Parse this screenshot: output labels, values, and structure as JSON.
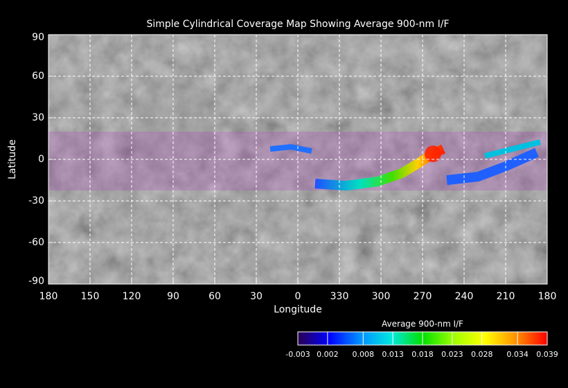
{
  "chart_data": {
    "type": "map",
    "title": "Simple Cylindrical Coverage Map Showing Average 900-nm I/F",
    "x_label": "Longitude",
    "y_label": "Latitude",
    "xlim": [
      180,
      -180
    ],
    "xticks": [
      180,
      150,
      120,
      90,
      60,
      30,
      0,
      {
        "value": -30,
        "label": "330"
      },
      {
        "value": -60,
        "label": "300"
      },
      {
        "value": -90,
        "label": "270"
      },
      {
        "value": -120,
        "label": "240"
      },
      {
        "value": -150,
        "label": "210"
      },
      {
        "value": -180,
        "label": "180"
      }
    ],
    "ylim": [
      -90,
      90
    ],
    "yticks": [
      90,
      60,
      30,
      0,
      -30,
      -60,
      -90
    ],
    "grid": true,
    "colorbar": {
      "title": "Average 900-nm I/F",
      "lim": [
        -0.003,
        0.039
      ],
      "ticks": [
        -0.003,
        0.002,
        0.008,
        0.013,
        0.018,
        0.023,
        0.028,
        0.034,
        0.039
      ],
      "colormap": [
        "#2a0050",
        "#0000ff",
        "#0090ff",
        "#00e8e0",
        "#00e000",
        "#a0ff00",
        "#ffff00",
        "#ff9000",
        "#ff0000"
      ]
    }
  }
}
